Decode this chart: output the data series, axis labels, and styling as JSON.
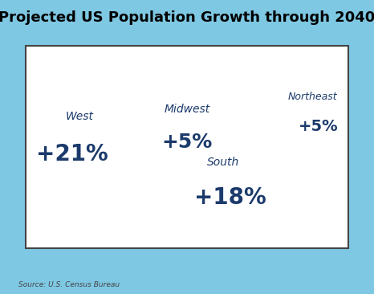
{
  "title": "Projected US Population Growth through 2040",
  "title_fontsize": 13,
  "background_color": "#7EC8E3",
  "map_face_color": "#FFFFFF",
  "map_edge_color": "#888888",
  "outer_edge_color": "#444444",
  "text_color": "#1B3A6B",
  "source_text": "Source: U.S. Census Bureau",
  "figsize": [
    4.66,
    3.66
  ],
  "dpi": 100,
  "regions": {
    "West": {
      "label": "West",
      "value": "+21%",
      "label_fontsize": 10,
      "value_fontsize": 20
    },
    "Midwest": {
      "label": "Midwest",
      "value": "+5%",
      "label_fontsize": 10,
      "value_fontsize": 18
    },
    "South": {
      "label": "South",
      "value": "+18%",
      "label_fontsize": 10,
      "value_fontsize": 20
    },
    "Northeast": {
      "label": "Northeast",
      "value": "+5%",
      "label_fontsize": 9,
      "value_fontsize": 14
    }
  }
}
